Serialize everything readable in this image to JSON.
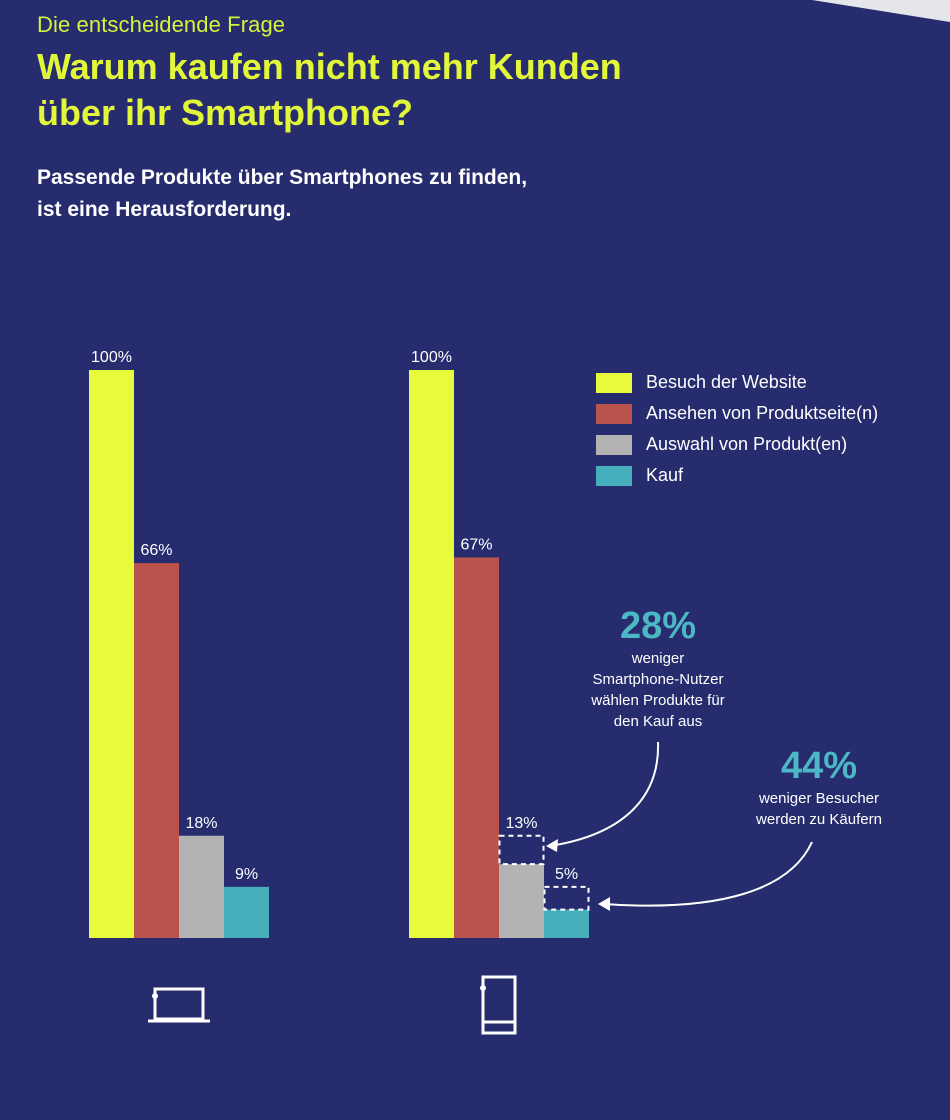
{
  "header": {
    "kicker": "Die entscheidende Frage",
    "title": "Warum kaufen nicht mehr Kunden über ihr Smartphone?",
    "subtitle": "Passende Produkte über Smartphones zu finden, ist eine Herausforderung."
  },
  "colors": {
    "background": "#262c6e",
    "accent": "#e2f73a",
    "callout": "#4db8c5"
  },
  "chart_data": {
    "type": "bar",
    "ylim": [
      0,
      100
    ],
    "legend_position": "top-right",
    "series": [
      {
        "name": "Besuch der Website",
        "color": "#e7fb3b"
      },
      {
        "name": "Ansehen von Produktseite(n)",
        "color": "#b9534c"
      },
      {
        "name": "Auswahl von Produkt(en)",
        "color": "#b3b3b3"
      },
      {
        "name": "Kauf",
        "color": "#46afbb"
      }
    ],
    "groups": [
      {
        "device": "laptop-icon",
        "values": [
          100,
          66,
          18,
          9
        ],
        "labels": [
          "100%",
          "66%",
          "18%",
          "9%"
        ]
      },
      {
        "device": "smartphone-icon",
        "values": [
          100,
          67,
          13,
          5
        ],
        "labels": [
          "100%",
          "67%",
          "13%",
          "5%"
        ]
      }
    ],
    "gap_markers": [
      {
        "group": 1,
        "bar": 2,
        "from": 13,
        "to": 18
      },
      {
        "group": 1,
        "bar": 3,
        "from": 5,
        "to": 9
      }
    ]
  },
  "callouts": [
    {
      "value": "28%",
      "lines": [
        "weniger",
        "Smartphone-Nutzer",
        "wählen Produkte für",
        "den Kauf aus"
      ]
    },
    {
      "value": "44%",
      "lines": [
        "weniger Besucher",
        "werden zu Käufern"
      ]
    }
  ]
}
